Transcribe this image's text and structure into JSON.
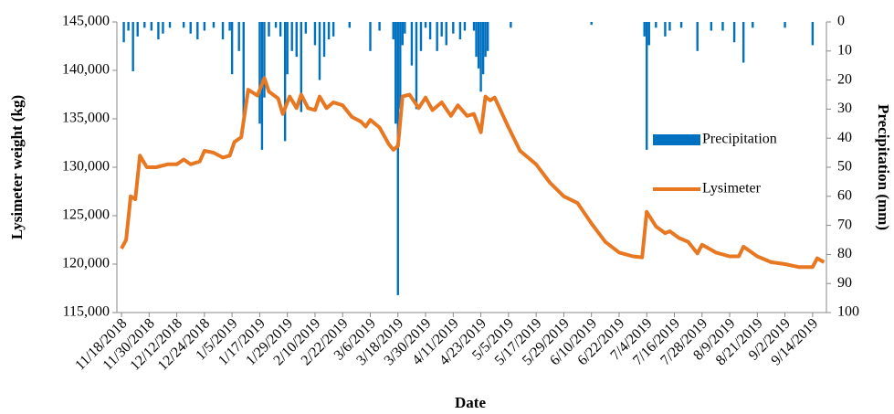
{
  "chart_data": {
    "type": "combo",
    "xlabel": "Date",
    "ylabel": "Lysimeter  weight  (kg)",
    "y2label": "Precipitation (mm)",
    "xlim": [
      "11/16/2018",
      "9/20/2019"
    ],
    "xticks": [
      "11/18/2018",
      "11/30/2018",
      "12/12/2018",
      "12/24/2018",
      "1/5/2019",
      "1/17/2019",
      "1/29/2019",
      "2/10/2019",
      "2/22/2019",
      "3/6/2019",
      "3/18/2019",
      "3/30/2019",
      "4/11/2019",
      "4/23/2019",
      "5/5/2019",
      "5/17/2019",
      "5/29/2019",
      "6/10/2019",
      "6/22/2019",
      "7/4/2019",
      "7/16/2019",
      "7/28/2019",
      "8/9/2019",
      "8/21/2019",
      "9/2/2019",
      "9/14/2019"
    ],
    "ylim": [
      115000,
      145000
    ],
    "yticks": [
      {
        "value": 115000,
        "label": "115,000"
      },
      {
        "value": 120000,
        "label": "120,000"
      },
      {
        "value": 125000,
        "label": "125,000"
      },
      {
        "value": 130000,
        "label": "130,000"
      },
      {
        "value": 135000,
        "label": "135,000"
      },
      {
        "value": 140000,
        "label": "140,000"
      },
      {
        "value": 145000,
        "label": "145,000"
      }
    ],
    "y2lim": [
      0,
      100
    ],
    "y2_reversed": true,
    "y2ticks": [
      0,
      10,
      20,
      30,
      40,
      50,
      60,
      70,
      80,
      90,
      100
    ],
    "legend": "right",
    "series": [
      {
        "name": "Precipitation",
        "type": "bar",
        "axis": "y2",
        "color": "#0070c0",
        "x": [
          "11/19/2018",
          "11/21/2018",
          "11/23/2018",
          "11/25/2018",
          "11/28/2018",
          "12/1/2018",
          "12/4/2018",
          "12/6/2018",
          "12/9/2018",
          "12/15/2018",
          "12/18/2018",
          "12/21/2018",
          "12/24/2018",
          "12/28/2018",
          "1/1/2019",
          "1/4/2019",
          "1/5/2019",
          "1/8/2019",
          "1/10/2019",
          "1/17/2019",
          "1/18/2019",
          "1/19/2019",
          "1/21/2019",
          "1/24/2019",
          "1/26/2019",
          "1/28/2019",
          "1/29/2019",
          "1/31/2019",
          "2/2/2019",
          "2/4/2019",
          "2/6/2019",
          "2/10/2019",
          "2/12/2019",
          "2/14/2019",
          "2/16/2019",
          "2/18/2019",
          "2/25/2019",
          "3/6/2019",
          "3/10/2019",
          "3/16/2019",
          "3/17/2019",
          "3/18/2019",
          "3/19/2019",
          "3/20/2019",
          "3/21/2019",
          "3/24/2019",
          "3/26/2019",
          "3/28/2019",
          "3/30/2019",
          "4/1/2019",
          "4/4/2019",
          "4/6/2019",
          "4/8/2019",
          "4/11/2019",
          "4/14/2019",
          "4/16/2019",
          "4/20/2019",
          "4/21/2019",
          "4/22/2019",
          "4/23/2019",
          "4/24/2019",
          "4/25/2019",
          "4/26/2019",
          "5/6/2019",
          "6/10/2019",
          "7/3/2019",
          "7/4/2019",
          "7/5/2019",
          "7/8/2019",
          "7/12/2019",
          "7/14/2019",
          "7/19/2019",
          "7/26/2019",
          "8/1/2019",
          "8/6/2019",
          "8/11/2019",
          "8/15/2019",
          "8/19/2019",
          "9/2/2019",
          "9/14/2019"
        ],
        "values": [
          7,
          3,
          17,
          5,
          2,
          3,
          6,
          4,
          2,
          2,
          4,
          6,
          3,
          2,
          6,
          3,
          18,
          10,
          34,
          35,
          44,
          26,
          5,
          2,
          5,
          41,
          18,
          10,
          12,
          31,
          4,
          8,
          20,
          12,
          6,
          5,
          2,
          10,
          3,
          6,
          35,
          94,
          30,
          8,
          4,
          15,
          30,
          10,
          2,
          6,
          10,
          5,
          8,
          4,
          6,
          3,
          3,
          12,
          16,
          24,
          18,
          12,
          10,
          2,
          1,
          5,
          44,
          8,
          2,
          5,
          3,
          2,
          10,
          3,
          3,
          7,
          14,
          2,
          2,
          8
        ]
      },
      {
        "name": "Lysimeter",
        "type": "line",
        "color": "#e87722",
        "x": [
          "11/18/2018",
          "11/20/2018",
          "11/22/2018",
          "11/24/2018",
          "11/26/2018",
          "11/29/2018",
          "12/3/2018",
          "12/8/2018",
          "12/12/2018",
          "12/15/2018",
          "12/18/2018",
          "12/22/2018",
          "12/24/2018",
          "12/28/2018",
          "1/1/2019",
          "1/4/2019",
          "1/6/2019",
          "1/9/2019",
          "1/12/2019",
          "1/16/2019",
          "1/19/2019",
          "1/21/2019",
          "1/25/2019",
          "1/27/2019",
          "1/30/2019",
          "2/2/2019",
          "2/4/2019",
          "2/7/2019",
          "2/10/2019",
          "2/12/2019",
          "2/15/2019",
          "2/18/2019",
          "2/22/2019",
          "2/26/2019",
          "3/2/2019",
          "3/4/2019",
          "3/6/2019",
          "3/10/2019",
          "3/14/2019",
          "3/16/2019",
          "3/18/2019",
          "3/20/2019",
          "3/23/2019",
          "3/27/2019",
          "3/30/2019",
          "4/2/2019",
          "4/6/2019",
          "4/10/2019",
          "4/13/2019",
          "4/17/2019",
          "4/20/2019",
          "4/23/2019",
          "4/25/2019",
          "4/27/2019",
          "4/29/2019",
          "5/5/2019",
          "5/10/2019",
          "5/17/2019",
          "5/23/2019",
          "5/29/2019",
          "6/4/2019",
          "6/10/2019",
          "6/16/2019",
          "6/22/2019",
          "6/28/2019",
          "7/2/2019",
          "7/4/2019",
          "7/8/2019",
          "7/12/2019",
          "7/14/2019",
          "7/18/2019",
          "7/22/2019",
          "7/26/2019",
          "7/28/2019",
          "8/3/2019",
          "8/9/2019",
          "8/13/2019",
          "8/15/2019",
          "8/21/2019",
          "8/27/2019",
          "9/2/2019",
          "9/8/2019",
          "9/14/2019",
          "9/16/2019",
          "9/19/2019"
        ],
        "values": [
          121600,
          122500,
          127000,
          126700,
          131200,
          130000,
          130000,
          130300,
          130300,
          130800,
          130300,
          130600,
          131700,
          131500,
          131000,
          131200,
          132600,
          133100,
          138000,
          137400,
          139200,
          137800,
          137100,
          135500,
          137300,
          136100,
          137500,
          136100,
          135900,
          137300,
          136100,
          136700,
          136400,
          135200,
          134700,
          134200,
          134900,
          134100,
          132400,
          131800,
          132200,
          137300,
          137500,
          136100,
          137200,
          135900,
          136700,
          135300,
          136400,
          135300,
          135500,
          133600,
          137300,
          136900,
          137200,
          134100,
          131700,
          130300,
          128400,
          127000,
          126300,
          124200,
          122300,
          121200,
          120800,
          120700,
          125400,
          123900,
          123200,
          123400,
          122700,
          122300,
          121100,
          122000,
          121200,
          120800,
          120800,
          121800,
          120800,
          120200,
          120000,
          119700,
          119700,
          120600,
          120200
        ]
      }
    ]
  }
}
